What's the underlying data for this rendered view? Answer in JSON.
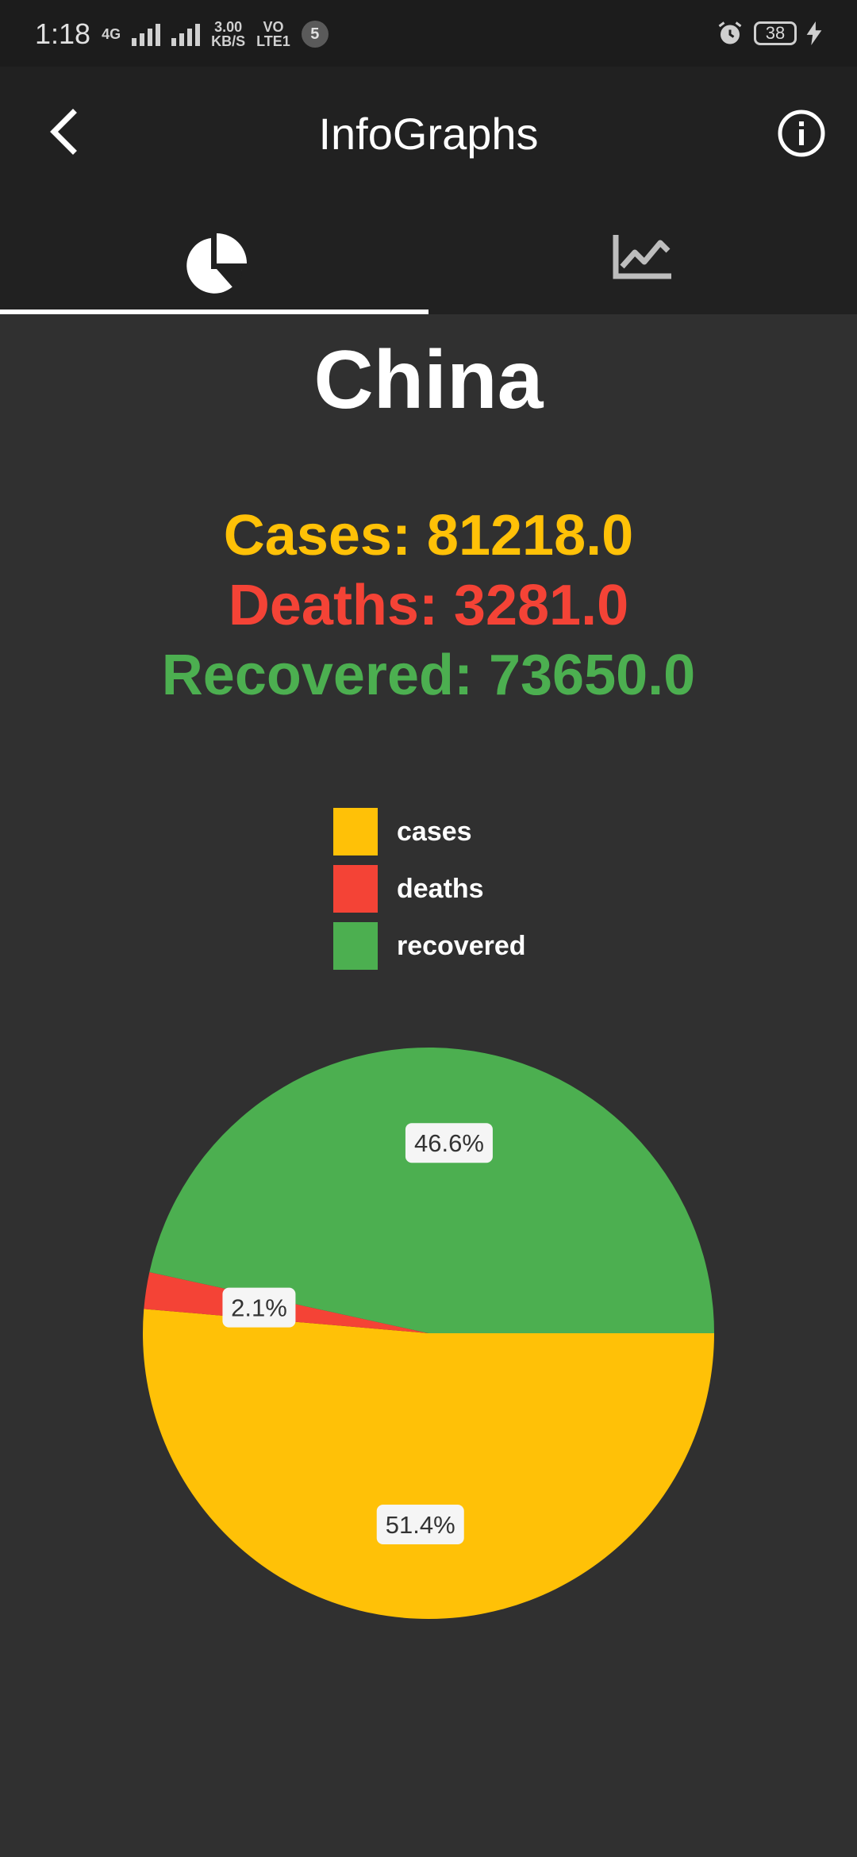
{
  "status_bar": {
    "time": "1:18",
    "network": "4G",
    "speed_value": "3.00",
    "speed_unit": "KB/S",
    "volte": "VO",
    "volte_sub": "LTE1",
    "notification_count": "5",
    "battery": "38"
  },
  "app_bar": {
    "title": "InfoGraphs"
  },
  "tabs": [
    {
      "icon": "pie-chart-icon",
      "selected": true
    },
    {
      "icon": "trending-chart-icon",
      "selected": false
    }
  ],
  "country": "China",
  "stats": {
    "cases": "Cases: 81218.0",
    "deaths": "Deaths: 3281.0",
    "recovered": "Recovered: 73650.0"
  },
  "colors": {
    "cases": "#ffc107",
    "deaths": "#f44336",
    "recovered": "#4caf50"
  },
  "chart_data": {
    "type": "pie",
    "legend": [
      "cases",
      "deaths",
      "recovered"
    ],
    "legend_placement": "top",
    "slices": [
      {
        "name": "cases",
        "value": 81218.0,
        "label": "51.4%",
        "color": "#ffc107"
      },
      {
        "name": "deaths",
        "value": 3281.0,
        "label": "2.1%",
        "color": "#f44336"
      },
      {
        "name": "recovered",
        "value": 73650.0,
        "label": "46.6%",
        "color": "#4caf50"
      }
    ]
  }
}
